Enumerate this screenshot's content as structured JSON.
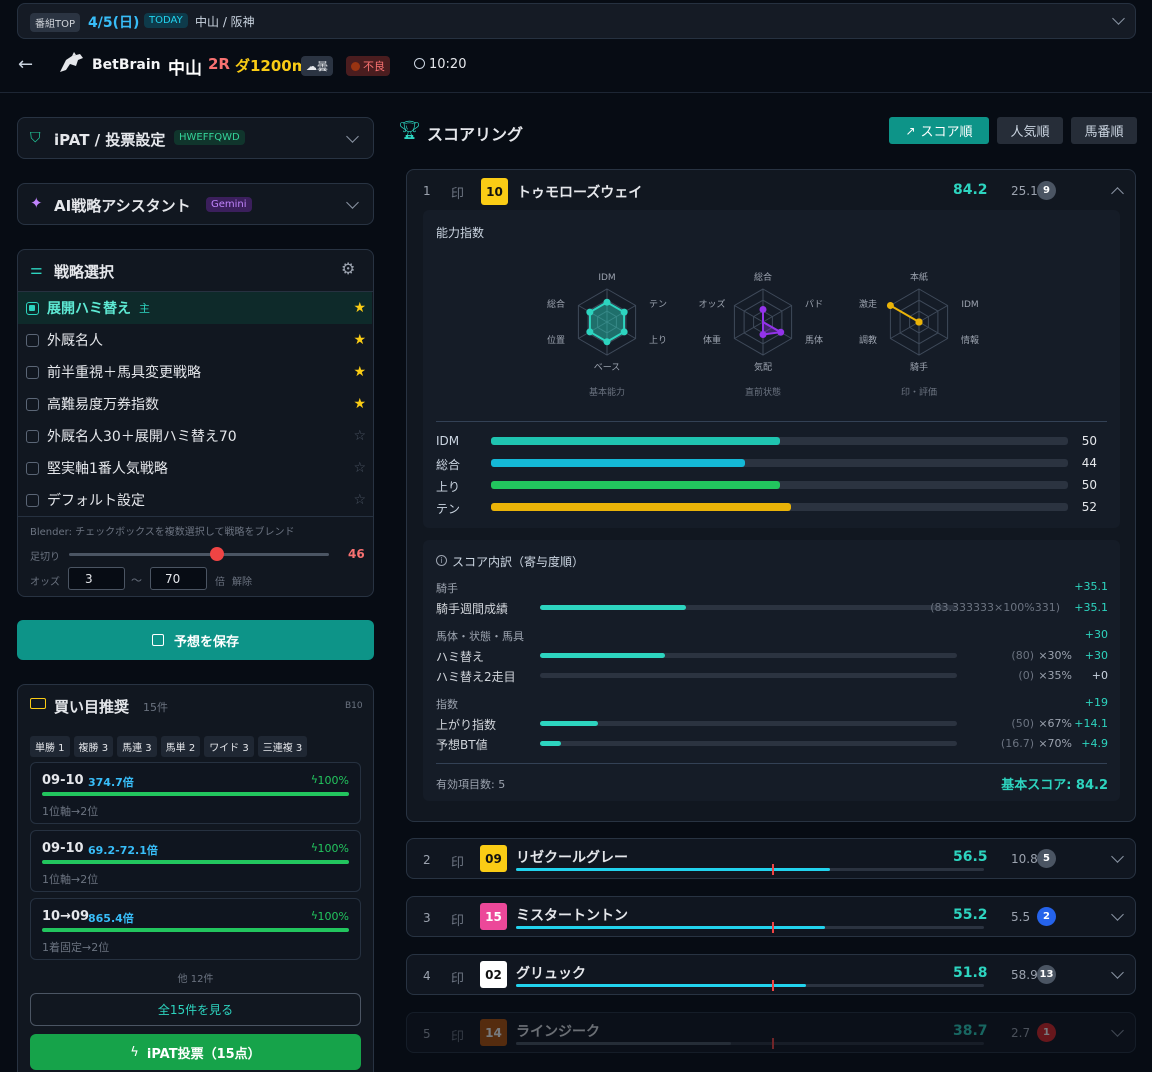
{
  "topbar": {
    "badge": "番組TOP",
    "date": "4/5(日)",
    "today": "TODAY",
    "venues": "中山 / 阪神"
  },
  "header": {
    "brand": "BetBrain",
    "venue": "中山",
    "race": "2R",
    "course": "ダ1200m",
    "weather": "☁曇",
    "condition": "不良",
    "time": "10:20"
  },
  "ipat": {
    "title": "iPAT / 投票設定",
    "code": "HWEFFQWD"
  },
  "ai": {
    "title": "AI戦略アシスタント",
    "model": "Gemini"
  },
  "strategy": {
    "title": "戦略選択",
    "items": [
      {
        "label": "展開ハミ替え",
        "tag": "主",
        "checked": true,
        "starred": true
      },
      {
        "label": "外厩名人",
        "checked": false,
        "starred": true
      },
      {
        "label": "前半重視＋馬具変更戦略",
        "checked": false,
        "starred": true
      },
      {
        "label": "高難易度万券指数",
        "checked": false,
        "starred": true
      },
      {
        "label": "外厩名人30＋展開ハミ替え70",
        "checked": false,
        "starred": false
      },
      {
        "label": "堅実軸1番人気戦略",
        "checked": false,
        "starred": false
      },
      {
        "label": "デフォルト設定",
        "checked": false,
        "starred": false
      }
    ],
    "blender": "Blender: チェックボックスを複数選択して戦略をブレンド",
    "cutoff_label": "足切り",
    "cutoff_value": "46",
    "odds_label": "オッズ",
    "odds_min": "3",
    "odds_sep": "〜",
    "odds_max": "70",
    "odds_unit": "倍",
    "odds_clear": "解除"
  },
  "save_button": "予想を保存",
  "bets": {
    "title": "買い目推奨",
    "count": "15件",
    "code": "B10",
    "chips": [
      "単勝 1",
      "複勝 3",
      "馬連 3",
      "馬単 2",
      "ワイド 3",
      "三連複 3"
    ],
    "items": [
      {
        "combo": "09-10",
        "odds": "374.7倍",
        "pct": "100%",
        "desc": "1位軸→2位"
      },
      {
        "combo": "09-10",
        "odds": "69.2-72.1倍",
        "pct": "100%",
        "desc": "1位軸→2位"
      },
      {
        "combo": "10→09",
        "odds": "865.4倍",
        "pct": "100%",
        "desc": "1着固定→2位"
      }
    ],
    "more": "他 12件",
    "view_all": "全15件を見る",
    "ipat_button": "iPAT投票（15点）"
  },
  "scoring": {
    "title": "スコアリング",
    "sort_buttons": [
      "スコア順",
      "人気順",
      "馬番順"
    ],
    "mark_label": "印",
    "expanded": {
      "rank": "1",
      "number": "10",
      "name": "トゥモローズウェイ",
      "score": "84.2",
      "odds": "25.1",
      "popularity": "9",
      "ability_title": "能力指数",
      "radars": [
        {
          "caption": "基本能力",
          "labels": [
            "IDM",
            "テン",
            "上り",
            "ベース",
            "位置",
            "総合"
          ]
        },
        {
          "caption": "直前状態",
          "labels": [
            "総合",
            "パド",
            "馬体",
            "気配",
            "体重",
            "オッズ"
          ]
        },
        {
          "caption": "印・評価",
          "labels": [
            "本紙",
            "IDM",
            "情報",
            "騎手",
            "調教",
            "激走"
          ]
        }
      ],
      "bars": [
        {
          "label": "IDM",
          "value": 50,
          "color": "#1fc4b0"
        },
        {
          "label": "総合",
          "value": 44,
          "color": "#14b8d6"
        },
        {
          "label": "上り",
          "value": 50,
          "color": "#22c55e"
        },
        {
          "label": "テン",
          "value": 52,
          "color": "#eab308"
        }
      ],
      "breakdown_title": "スコア内訳（寄与度順）",
      "groups": [
        {
          "name": "騎手",
          "total": "+35.1",
          "rows": [
            {
              "label": "騎手週間成績",
              "fill": 0.35,
              "raw": "(83.333333×100%331)",
              "weight": "",
              "contrib": "+35.1"
            }
          ]
        },
        {
          "name": "馬体・状態・馬具",
          "total": "+30",
          "rows": [
            {
              "label": "ハミ替え",
              "fill": 0.3,
              "raw": "(80)",
              "weight": "×30%",
              "contrib": "+30"
            },
            {
              "label": "ハミ替え2走目",
              "fill": 0,
              "raw": "(0)",
              "weight": "×35%",
              "contrib": "+0"
            }
          ]
        },
        {
          "name": "指数",
          "total": "+19",
          "rows": [
            {
              "label": "上がり指数",
              "fill": 0.14,
              "raw": "(50)",
              "weight": "×67%",
              "contrib": "+14.1"
            },
            {
              "label": "予想BT値",
              "fill": 0.05,
              "raw": "(16.7)",
              "weight": "×70%",
              "contrib": "+4.9"
            }
          ]
        }
      ],
      "valid_count": "有効項目数: 5",
      "base_score": "基本スコア: 84.2"
    },
    "rows": [
      {
        "rank": "2",
        "number": "09",
        "name": "リゼクールグレー",
        "score": "56.5",
        "odds": "10.8",
        "popularity": "5",
        "num_bg": "#facc15",
        "num_fg": "#111111",
        "badge_bg": "#4b5563",
        "fill": 0.67
      },
      {
        "rank": "3",
        "number": "15",
        "name": "ミスタートントン",
        "score": "55.2",
        "odds": "5.5",
        "popularity": "2",
        "num_bg": "#ec4899",
        "num_fg": "#ffffff",
        "badge_bg": "#2563eb",
        "fill": 0.66
      },
      {
        "rank": "4",
        "number": "02",
        "name": "グリュック",
        "score": "51.8",
        "odds": "58.9",
        "popularity": "13",
        "num_bg": "#ffffff",
        "num_fg": "#111111",
        "badge_bg": "#4b5563",
        "fill": 0.62
      },
      {
        "rank": "5",
        "number": "14",
        "name": "ラインジーク",
        "score": "38.7",
        "odds": "2.7",
        "popularity": "1",
        "num_bg": "#b45309",
        "num_fg": "#ffffff",
        "badge_bg": "#dc2626",
        "fill": 0.46
      }
    ]
  }
}
